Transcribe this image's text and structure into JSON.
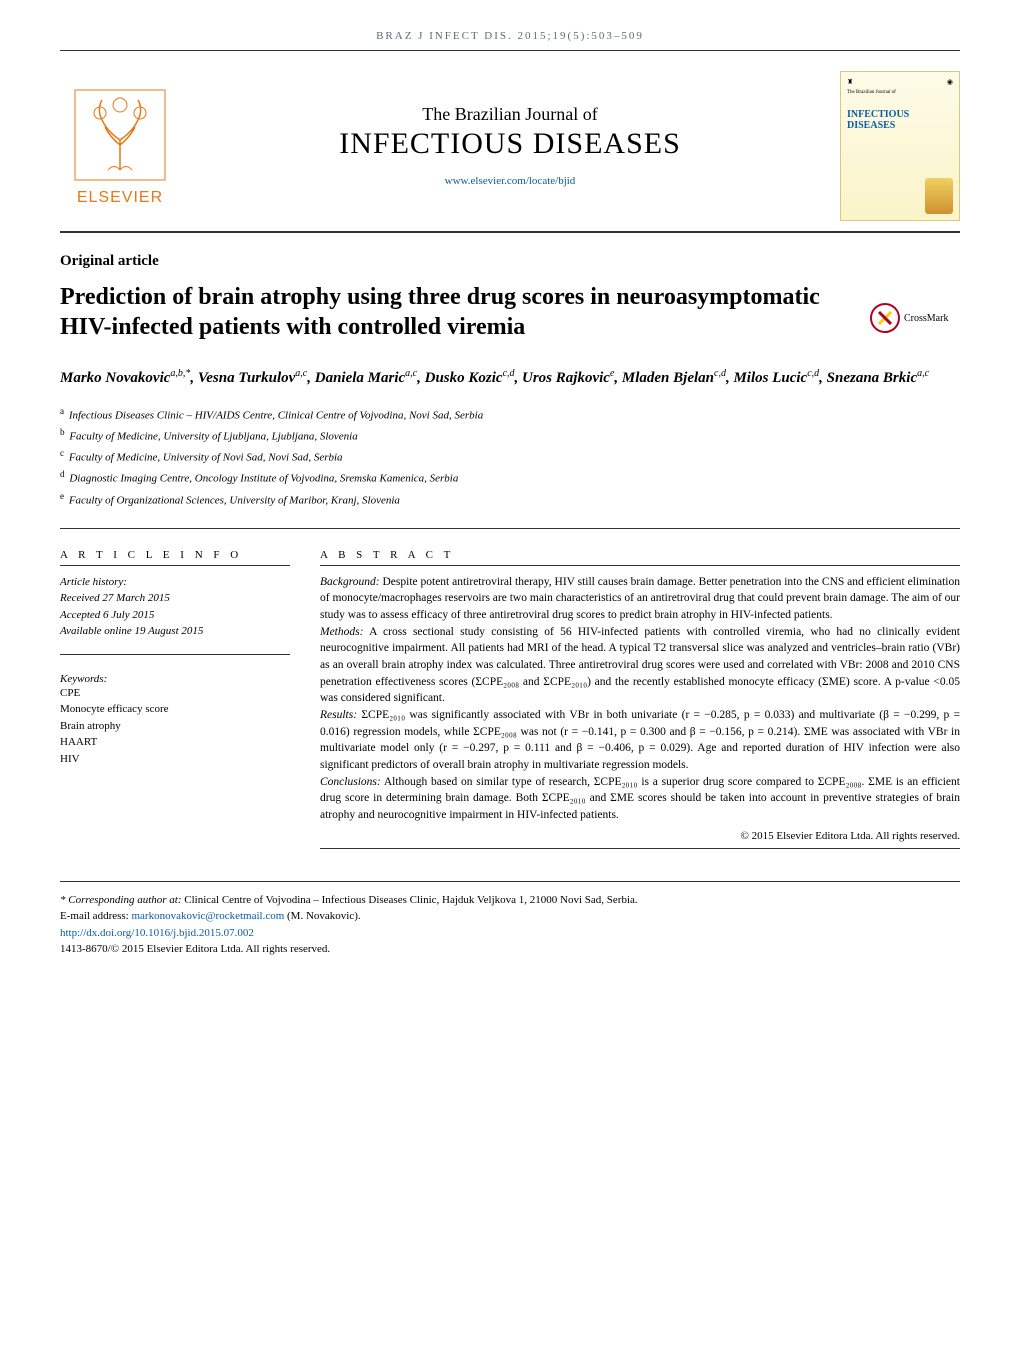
{
  "running_head": "BRAZ J INFECT DIS. 2015;19(5):503–509",
  "publisher_name": "ELSEVIER",
  "journal": {
    "small": "The Brazilian Journal of",
    "big": "INFECTIOUS DISEASES",
    "url": "www.elsevier.com/locate/bjid",
    "cover_label": "INFECTIOUS DISEASES",
    "cover_small": "The Brazilian Journal of"
  },
  "section_label": "Original article",
  "crossmark_label": "CrossMark",
  "title": "Prediction of brain atrophy using three drug scores in neuroasymptomatic HIV-infected patients with controlled viremia",
  "authors_html": "Marko Novakovic<sup>a,b,*</sup>, Vesna Turkulov<sup>a,c</sup>, Daniela Maric<sup>a,c</sup>, Dusko Kozic<sup>c,d</sup>, Uros Rajkovic<sup>e</sup>, Mladen Bjelan<sup>c,d</sup>, Milos Lucic<sup>c,d</sup>, Snezana Brkic<sup>a,c</sup>",
  "affiliations": [
    {
      "sup": "a",
      "text": "Infectious Diseases Clinic – HIV/AIDS Centre, Clinical Centre of Vojvodina, Novi Sad, Serbia"
    },
    {
      "sup": "b",
      "text": "Faculty of Medicine, University of Ljubljana, Ljubljana, Slovenia"
    },
    {
      "sup": "c",
      "text": "Faculty of Medicine, University of Novi Sad, Novi Sad, Serbia"
    },
    {
      "sup": "d",
      "text": "Diagnostic Imaging Centre, Oncology Institute of Vojvodina, Sremska Kamenica, Serbia"
    },
    {
      "sup": "e",
      "text": "Faculty of Organizational Sciences, University of Maribor, Kranj, Slovenia"
    }
  ],
  "article_info_head": "A R T I C L E  I N F O",
  "abstract_head": "A B S T R A C T",
  "history_label": "Article history:",
  "history": {
    "received": "Received 27 March 2015",
    "accepted": "Accepted 6 July 2015",
    "online": "Available online 19 August 2015"
  },
  "keywords_label": "Keywords:",
  "keywords": [
    "CPE",
    "Monocyte efficacy score",
    "Brain atrophy",
    "HAART",
    "HIV"
  ],
  "abstract": {
    "background_label": "Background:",
    "background": " Despite potent antiretroviral therapy, HIV still causes brain damage. Better penetration into the CNS and efficient elimination of monocyte/macrophages reservoirs are two main characteristics of an antiretroviral drug that could prevent brain damage. The aim of our study was to assess efficacy of three antiretroviral drug scores to predict brain atrophy in HIV-infected patients.",
    "methods_label": "Methods:",
    "methods": " A cross sectional study consisting of 56 HIV-infected patients with controlled viremia, who had no clinically evident neurocognitive impairment. All patients had MRI of the head. A typical T2 transversal slice was analyzed and ventricles–brain ratio (VBr) as an overall brain atrophy index was calculated. Three antiretroviral drug scores were used and correlated with VBr: 2008 and 2010 CNS penetration effectiveness scores (ΣCPE₂₀₀₈ and ΣCPE₂₀₁₀) and the recently established monocyte efficacy (ΣME) score. A p-value <0.05 was considered significant.",
    "results_label": "Results:",
    "results": " ΣCPE₂₀₁₀ was significantly associated with VBr in both univariate (r = −0.285, p = 0.033) and multivariate (β = −0.299, p = 0.016) regression models, while ΣCPE₂₀₀₈ was not (r = −0.141, p = 0.300 and β = −0.156, p = 0.214). ΣME was associated with VBr in multivariate model only (r = −0.297, p = 0.111 and β = −0.406, p = 0.029). Age and reported duration of HIV infection were also significant predictors of overall brain atrophy in multivariate regression models.",
    "conclusions_label": "Conclusions:",
    "conclusions": " Although based on similar type of research, ΣCPE₂₀₁₀ is a superior drug score compared to ΣCPE₂₀₀₈. ΣME is an efficient drug score in determining brain damage. Both ΣCPE₂₀₁₀ and ΣME scores should be taken into account in preventive strategies of brain atrophy and neurocognitive impairment in HIV-infected patients."
  },
  "copyright": "© 2015 Elsevier Editora Ltda. All rights reserved.",
  "footer": {
    "corresponding_label": "* Corresponding author at:",
    "corresponding": " Clinical Centre of Vojvodina – Infectious Diseases Clinic, Hajduk Veljkova 1, 21000 Novi Sad, Serbia.",
    "email_label": "E-mail address: ",
    "email": "markonovakovic@rocketmail.com",
    "email_after": " (M. Novakovic).",
    "doi": "http://dx.doi.org/10.1016/j.bjid.2015.07.002",
    "issn": "1413-8670/© 2015 Elsevier Editora Ltda. All rights reserved."
  },
  "colors": {
    "link": "#0b5ba5",
    "elsevier_orange": "#e67817",
    "header_text": "#5a6b7a"
  }
}
